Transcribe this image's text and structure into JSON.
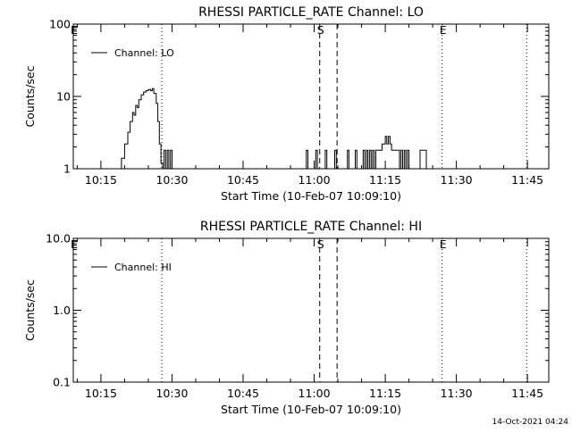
{
  "footer_timestamp": "14-Oct-2021 04:24",
  "chart_data": [
    {
      "type": "line",
      "title": "RHESSI PARTICLE_RATE Channel: LO",
      "xlabel": "Start Time (10-Feb-07 10:09:10)",
      "ylabel": "Counts/sec",
      "yscale": "log",
      "xlim": [
        "10:09:10",
        "11:49:30"
      ],
      "ylim": [
        1,
        100
      ],
      "xticks": [
        "10:15",
        "10:30",
        "10:45",
        "11:00",
        "11:15",
        "11:30",
        "11:45"
      ],
      "yticks": [
        "1",
        "10",
        "100"
      ],
      "legend": {
        "label": "Channel: LO",
        "placement": "top-left"
      },
      "markers": [
        {
          "label": "E",
          "time": "10:09:10",
          "style": "none"
        },
        {
          "label": "",
          "time": "10:27:50",
          "style": "dotted"
        },
        {
          "label": "S",
          "time": "11:01:10",
          "style": "dashed"
        },
        {
          "label": "",
          "time": "11:04:50",
          "style": "dashed"
        },
        {
          "label": "E",
          "time": "11:27:00",
          "style": "dotted"
        },
        {
          "label": "",
          "time": "11:44:50",
          "style": "dotted"
        }
      ],
      "series": [
        {
          "name": "Channel: LO",
          "x": [
            "10:18:40",
            "10:19:20",
            "10:20:00",
            "10:20:40",
            "10:21:10",
            "10:21:40",
            "10:22:00",
            "10:22:20",
            "10:22:40",
            "10:23:00",
            "10:23:30",
            "10:24:00",
            "10:24:30",
            "10:25:00",
            "10:25:30",
            "10:25:50",
            "10:26:10",
            "10:26:40",
            "10:27:00",
            "10:27:20",
            "10:27:40",
            "10:28:00",
            "10:28:20",
            "10:28:40",
            "10:29:00",
            "10:29:20",
            "10:29:40",
            "10:30:00",
            "10:30:20",
            "10:30:40",
            "10:31:00",
            "10:58:00",
            "10:58:20",
            "10:58:40",
            "11:00:00",
            "11:00:20",
            "11:00:40",
            "11:02:00",
            "11:02:20",
            "11:02:40",
            "11:04:00",
            "11:04:20",
            "11:04:40",
            "11:06:40",
            "11:07:00",
            "11:07:20",
            "11:08:20",
            "11:08:40",
            "11:09:00",
            "11:10:00",
            "11:10:20",
            "11:10:40",
            "11:11:00",
            "11:11:20",
            "11:11:40",
            "11:12:00",
            "11:12:20",
            "11:12:40",
            "11:13:00",
            "11:13:20",
            "11:13:40",
            "11:14:00",
            "11:14:20",
            "11:14:40",
            "11:15:00",
            "11:15:20",
            "11:15:40",
            "11:16:00",
            "11:16:20",
            "11:16:40",
            "11:17:00",
            "11:17:20",
            "11:17:40",
            "11:18:00",
            "11:18:20",
            "11:18:40",
            "11:19:00",
            "11:19:20",
            "11:19:40",
            "11:20:00",
            "11:22:00",
            "11:22:20",
            "11:23:20",
            "11:23:40"
          ],
          "y": [
            1,
            1.4,
            2.2,
            3.2,
            4.5,
            6,
            5.5,
            7.5,
            7,
            9,
            10.5,
            11.5,
            12,
            12.5,
            12,
            12.8,
            11,
            8,
            4.5,
            2.2,
            1.2,
            1,
            1.8,
            1,
            1.8,
            1,
            1.8,
            1,
            1,
            1,
            1,
            1,
            1.8,
            1,
            1,
            1.8,
            1,
            1,
            1.8,
            1,
            1,
            1.8,
            1,
            1,
            1.8,
            1,
            1,
            1.8,
            1,
            1,
            1.8,
            1,
            1.8,
            1,
            1.8,
            1,
            1.8,
            1,
            1.8,
            1.8,
            1.8,
            1.8,
            2.2,
            2.2,
            2.8,
            2.2,
            2.8,
            2.2,
            1.8,
            1.8,
            1.8,
            1.8,
            1.8,
            1,
            1.8,
            1,
            1.8,
            1,
            1.8,
            1,
            1,
            1.8,
            1.8,
            1
          ]
        }
      ]
    },
    {
      "type": "line",
      "title": "RHESSI PARTICLE_RATE Channel: HI",
      "xlabel": "Start Time (10-Feb-07 10:09:10)",
      "ylabel": "Counts/sec",
      "yscale": "log",
      "xlim": [
        "10:09:10",
        "11:49:30"
      ],
      "ylim": [
        0.1,
        10
      ],
      "xticks": [
        "10:15",
        "10:30",
        "10:45",
        "11:00",
        "11:15",
        "11:30",
        "11:45"
      ],
      "yticks": [
        "0.1",
        "1.0",
        "10.0"
      ],
      "legend": {
        "label": "Channel: HI",
        "placement": "top-left"
      },
      "markers": [
        {
          "label": "E",
          "time": "10:09:10",
          "style": "none"
        },
        {
          "label": "",
          "time": "10:27:50",
          "style": "dotted"
        },
        {
          "label": "S",
          "time": "11:01:10",
          "style": "dashed"
        },
        {
          "label": "",
          "time": "11:04:50",
          "style": "dashed"
        },
        {
          "label": "E",
          "time": "11:27:00",
          "style": "dotted"
        },
        {
          "label": "",
          "time": "11:44:50",
          "style": "dotted"
        }
      ],
      "series": [
        {
          "name": "Channel: HI",
          "x": [],
          "y": []
        }
      ]
    }
  ]
}
